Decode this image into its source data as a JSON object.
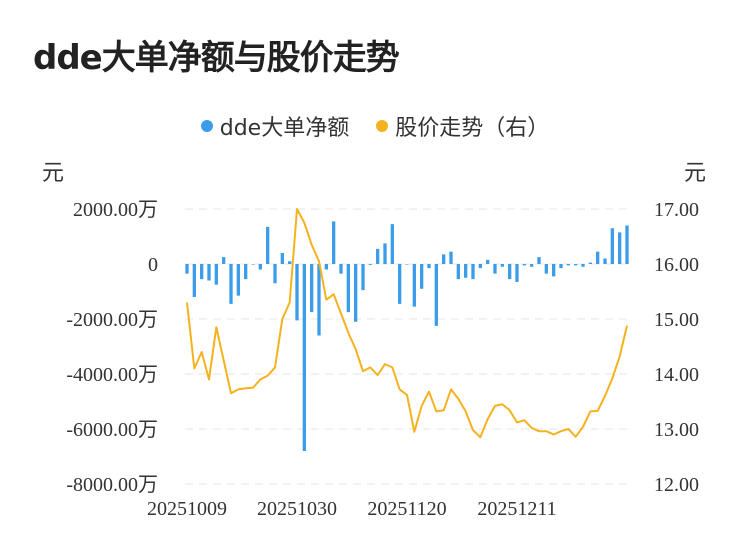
{
  "chart_data": {
    "type": "bar+line",
    "title": "dde大单净额与股价走势",
    "legend": [
      "dde大单净额",
      "股价走势（右）"
    ],
    "legend_position": "top-center",
    "left_axis_unit": "元",
    "right_axis_unit": "元",
    "left_ticks": [
      "2000.00万",
      "0",
      "-2000.00万",
      "-4000.00万",
      "-6000.00万",
      "-8000.00万"
    ],
    "right_ticks": [
      "17.00",
      "16.00",
      "15.00",
      "14.00",
      "13.00",
      "12.00"
    ],
    "x_tick_labels": [
      "20251009",
      "20251030",
      "20251120",
      "20251211"
    ],
    "x_tick_indices": [
      0,
      15,
      30,
      45
    ],
    "ylim_left": [
      -8000,
      2000
    ],
    "ylim_right": [
      12,
      17
    ],
    "grid": true,
    "colors": {
      "bar": "#3b9cea",
      "line": "#f5b21f"
    },
    "series": [
      {
        "name": "dde大单净额",
        "axis": "left",
        "unit": "万元",
        "values": [
          -350,
          -1200,
          -550,
          -600,
          -750,
          250,
          -1450,
          -1150,
          -550,
          -20,
          -200,
          1350,
          -700,
          400,
          100,
          -2050,
          -6800,
          -1750,
          -2600,
          -200,
          1550,
          -350,
          -1750,
          -2100,
          -950,
          -30,
          550,
          750,
          1450,
          -1450,
          -20,
          -1550,
          -900,
          -150,
          -2250,
          350,
          450,
          -550,
          -500,
          -550,
          -150,
          150,
          -350,
          -100,
          -550,
          -650,
          -50,
          -100,
          250,
          -350,
          -450,
          -150,
          -50,
          -50,
          -100,
          50,
          450,
          200,
          1300,
          1150,
          1400
        ]
      },
      {
        "name": "股价走势（右）",
        "axis": "right",
        "values": [
          15.3,
          14.1,
          14.4,
          13.9,
          14.85,
          14.25,
          13.65,
          13.72,
          13.74,
          13.75,
          13.9,
          13.97,
          14.12,
          15.0,
          15.3,
          17.0,
          16.75,
          16.35,
          16.05,
          15.35,
          15.45,
          15.1,
          14.75,
          14.45,
          14.05,
          14.12,
          13.98,
          14.18,
          14.12,
          13.72,
          13.62,
          12.95,
          13.42,
          13.68,
          13.32,
          13.34,
          13.72,
          13.55,
          13.32,
          12.98,
          12.85,
          13.18,
          13.42,
          13.45,
          13.34,
          13.12,
          13.16,
          13.02,
          12.96,
          12.96,
          12.9,
          12.96,
          13.0,
          12.86,
          13.04,
          13.32,
          13.33,
          13.6,
          13.92,
          14.32,
          14.88
        ]
      }
    ]
  }
}
